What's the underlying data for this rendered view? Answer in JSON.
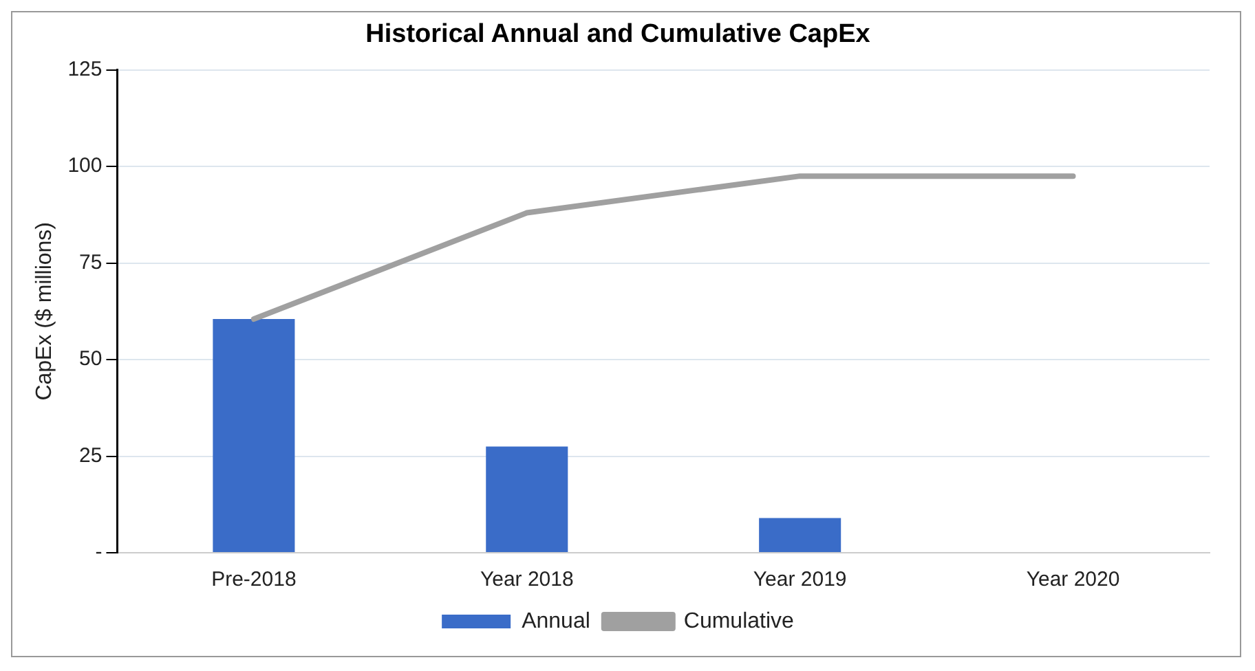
{
  "chart_data": {
    "type": "bar",
    "title": "Historical Annual and Cumulative CapEx",
    "ylabel": "CapEx ($ millions)",
    "categories": [
      "Pre-2018",
      "Year 2018",
      "Year 2019",
      "Year 2020"
    ],
    "series": [
      {
        "name": "Annual",
        "color": "#3a6cc8",
        "values": [
          60.5,
          27.5,
          9,
          0
        ]
      },
      {
        "name": "Cumulative",
        "type": "line",
        "color": "#a0a0a0",
        "values": [
          60.5,
          88,
          97.5,
          97.5
        ]
      }
    ],
    "ylim": [
      0,
      125
    ],
    "yticks": [
      {
        "value": 0,
        "label": "-"
      },
      25,
      50,
      75,
      100,
      125
    ],
    "grid": "y",
    "legend": "bottom",
    "marker": "none"
  }
}
